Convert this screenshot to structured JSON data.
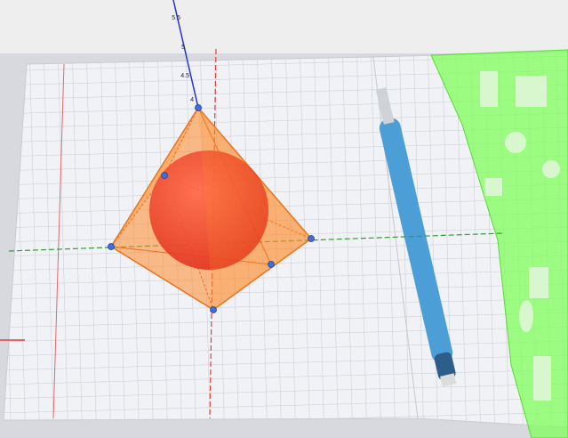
{
  "axis_labels": [
    "5.5",
    "5",
    "4.5",
    "4"
  ]
}
